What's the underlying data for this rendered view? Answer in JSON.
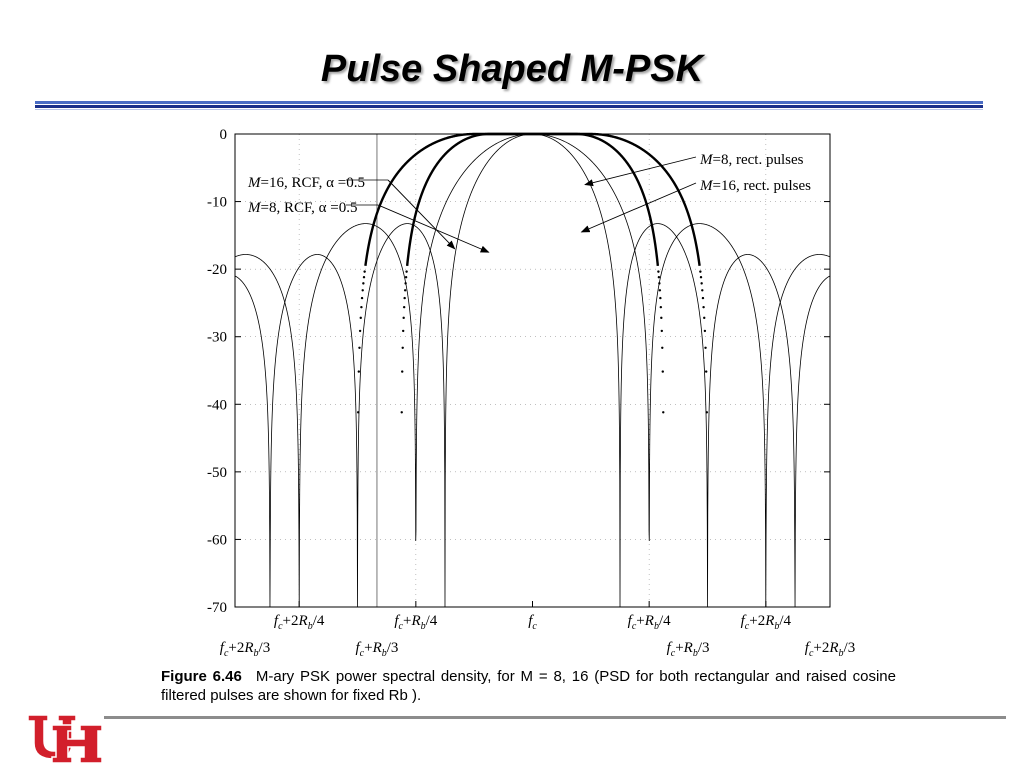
{
  "slide": {
    "title": "Pulse Shaped M-PSK"
  },
  "caption": {
    "label": "Figure 6.46",
    "text": "M-ary PSK power spectral density, for M = 8, 16 (PSD for both rectangular and raised cosine filtered pulses are shown for fixed Rb )."
  },
  "colors": {
    "title_rule_light": "#4a6cc4",
    "title_rule_dark": "#1a2f8a",
    "footer_rule": "#8c8c8c",
    "logo_red": "#d21f2b"
  },
  "chart_data": {
    "type": "line",
    "title": "",
    "xlabel": "",
    "ylabel": "",
    "xlim": [
      -0.85,
      0.85
    ],
    "ylim": [
      -70,
      0
    ],
    "grid": "dotted",
    "y_ticks": [
      "0",
      "-10",
      "-20",
      "-30",
      "-40",
      "-50",
      "-60",
      "-70"
    ],
    "x_ticks_upper": [
      {
        "x": -0.6667,
        "base": "f",
        "sub": "c",
        "rest": "+2",
        "R": "R",
        "rsub": "b",
        "tail": "/4"
      },
      {
        "x": -0.3333,
        "base": "f",
        "sub": "c",
        "rest": "+",
        "R": "R",
        "rsub": "b",
        "tail": "/4"
      },
      {
        "x": 0.0,
        "base": "f",
        "sub": "c",
        "rest": "",
        "R": "",
        "rsub": "",
        "tail": ""
      },
      {
        "x": 0.3333,
        "base": "f",
        "sub": "c",
        "rest": "+",
        "R": "R",
        "rsub": "b",
        "tail": "/4"
      },
      {
        "x": 0.6667,
        "base": "f",
        "sub": "c",
        "rest": "+2",
        "R": "R",
        "rsub": "b",
        "tail": "/4"
      }
    ],
    "x_ticks_lower": [
      {
        "x": -0.85,
        "base": "f",
        "sub": "c",
        "rest": "+2",
        "R": "R",
        "rsub": "b",
        "tail": "/3"
      },
      {
        "x": -0.4444,
        "base": "f",
        "sub": "c",
        "rest": "+",
        "R": "R",
        "rsub": "b",
        "tail": "/3"
      },
      {
        "x": 0.4444,
        "base": "f",
        "sub": "c",
        "rest": "+",
        "R": "R",
        "rsub": "b",
        "tail": "/3"
      },
      {
        "x": 0.85,
        "base": "f",
        "sub": "c",
        "rest": "+2",
        "R": "R",
        "rsub": "b",
        "tail": "/3"
      }
    ],
    "series": [
      {
        "name": "M=8, rect. pulses",
        "style": "thin",
        "null_spacing": 0.3333
      },
      {
        "name": "M=16, rect. pulses",
        "style": "thin",
        "null_spacing": 0.25
      },
      {
        "name": "M=8, RCF, α =0.5",
        "style": "thick-dotted",
        "band_edge": 0.3333,
        "alpha": 0.5
      },
      {
        "name": "M=16, RCF, α =0.5",
        "style": "thick-dotted",
        "band_edge": 0.25,
        "alpha": 0.5
      }
    ],
    "annotations": [
      {
        "label_M": "M",
        "label_rest": "=16, RCF,  ",
        "label_alpha": "α",
        "label_tail": " =0.5",
        "position": "upper-left"
      },
      {
        "label_M": "M",
        "label_rest": "=8, RCF,  ",
        "label_alpha": "α",
        "label_tail": " =0.5",
        "position": "upper-left"
      },
      {
        "label_M": "M",
        "label_rest": "=8, rect. pulses",
        "position": "upper-right"
      },
      {
        "label_M": "M",
        "label_rest": "=16, rect. pulses",
        "position": "upper-right"
      }
    ]
  }
}
